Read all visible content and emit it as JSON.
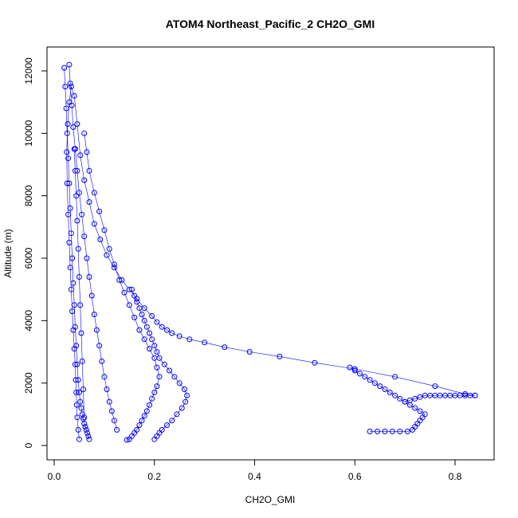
{
  "chart_data": {
    "type": "scatter",
    "title": "ATOM4 Northeast_Pacific_2 CH2O_GMI",
    "xlabel": "CH2O_GMI",
    "ylabel": "Altitude (m)",
    "xlim": [
      0.0,
      0.85
    ],
    "ylim": [
      0,
      12300
    ],
    "x_ticks": [
      "0.0",
      "0.2",
      "0.4",
      "0.6",
      "0.8"
    ],
    "x_tick_values": [
      0.0,
      0.2,
      0.4,
      0.6,
      0.8
    ],
    "y_ticks": [
      "0",
      "2000",
      "4000",
      "6000",
      "8000",
      "10000",
      "12000"
    ],
    "y_tick_values": [
      0,
      2000,
      4000,
      6000,
      8000,
      10000,
      12000
    ],
    "marker": "open-circle",
    "color": "#0000ff",
    "grid": false,
    "series": [
      {
        "x": [
          0.05,
          0.048,
          0.046,
          0.045,
          0.044,
          0.043,
          0.042,
          0.04,
          0.038,
          0.036,
          0.034,
          0.032,
          0.03,
          0.028,
          0.026,
          0.025,
          0.027,
          0.03,
          0.034,
          0.04,
          0.046,
          0.052,
          0.06,
          0.07,
          0.08,
          0.092,
          0.105,
          0.12,
          0.135,
          0.15,
          0.165,
          0.18,
          0.195,
          0.205,
          0.215,
          0.225,
          0.235,
          0.25,
          0.27,
          0.3,
          0.34,
          0.39,
          0.45,
          0.52,
          0.6,
          0.68,
          0.76,
          0.82,
          0.84
        ],
        "y": [
          200,
          500,
          900,
          1300,
          1700,
          2100,
          2600,
          3100,
          3700,
          4300,
          5000,
          5700,
          6500,
          7400,
          8400,
          9400,
          10300,
          11000,
          11500,
          11200,
          10300,
          9300,
          8500,
          7800,
          7100,
          6600,
          6100,
          5700,
          5300,
          5000,
          4700,
          4400,
          4150,
          3950,
          3800,
          3700,
          3600,
          3500,
          3400,
          3300,
          3150,
          3000,
          2850,
          2650,
          2450,
          2200,
          1900,
          1650,
          1600
        ]
      },
      {
        "x": [
          0.02,
          0.022,
          0.024,
          0.026,
          0.028,
          0.03,
          0.032,
          0.034,
          0.036,
          0.038,
          0.04,
          0.042,
          0.044,
          0.046,
          0.048,
          0.05,
          0.052,
          0.054,
          0.056,
          0.058,
          0.06,
          0.062,
          0.064,
          0.066,
          0.068,
          0.07
        ],
        "y": [
          12100,
          11500,
          10800,
          10000,
          9200,
          8400,
          7600,
          6800,
          6000,
          5200,
          4500,
          3800,
          3200,
          2600,
          2100,
          1700,
          1400,
          1200,
          1000,
          850,
          700,
          600,
          500,
          400,
          300,
          200
        ]
      },
      {
        "x": [
          0.03,
          0.032,
          0.035,
          0.038,
          0.042,
          0.046,
          0.05,
          0.055,
          0.06,
          0.065,
          0.07,
          0.075,
          0.08,
          0.085,
          0.09,
          0.095,
          0.1,
          0.105,
          0.11,
          0.115,
          0.12,
          0.125
        ],
        "y": [
          12200,
          11600,
          10900,
          10200,
          9500,
          8800,
          8100,
          7400,
          6700,
          6000,
          5400,
          4800,
          4200,
          3700,
          3200,
          2700,
          2200,
          1800,
          1400,
          1100,
          800,
          500
        ]
      },
      {
        "x": [
          0.06,
          0.065,
          0.07,
          0.08,
          0.09,
          0.1,
          0.11,
          0.12,
          0.13,
          0.14,
          0.15,
          0.16,
          0.17,
          0.18,
          0.19,
          0.2,
          0.205,
          0.21,
          0.205,
          0.2,
          0.195,
          0.19,
          0.185,
          0.18,
          0.175,
          0.17,
          0.165,
          0.16,
          0.155,
          0.15,
          0.145
        ],
        "y": [
          10000,
          9400,
          8800,
          8100,
          7500,
          6900,
          6300,
          5800,
          5300,
          4900,
          4500,
          4100,
          3700,
          3400,
          3100,
          2800,
          2500,
          2200,
          1900,
          1700,
          1500,
          1300,
          1100,
          950,
          800,
          650,
          500,
          400,
          300,
          200,
          180
        ]
      },
      {
        "x": [
          0.155,
          0.16,
          0.165,
          0.17,
          0.175,
          0.18,
          0.185,
          0.19,
          0.195,
          0.2,
          0.205,
          0.21,
          0.22,
          0.23,
          0.24,
          0.25,
          0.26,
          0.265,
          0.262,
          0.255,
          0.245,
          0.235,
          0.225,
          0.215,
          0.21,
          0.205,
          0.2
        ],
        "y": [
          5000,
          4800,
          4600,
          4400,
          4200,
          4000,
          3800,
          3600,
          3400,
          3200,
          3000,
          2800,
          2600,
          2400,
          2200,
          2000,
          1800,
          1600,
          1400,
          1200,
          1000,
          800,
          650,
          500,
          400,
          300,
          200
        ]
      },
      {
        "x": [
          0.63,
          0.645,
          0.66,
          0.675,
          0.69,
          0.705,
          0.715,
          0.72,
          0.725,
          0.73,
          0.735,
          0.74,
          0.73,
          0.72,
          0.71,
          0.7,
          0.69,
          0.68,
          0.67,
          0.66,
          0.65,
          0.64,
          0.63,
          0.62,
          0.61,
          0.6,
          0.59
        ],
        "y": [
          450,
          450,
          450,
          450,
          450,
          450,
          500,
          600,
          700,
          800,
          900,
          1000,
          1100,
          1200,
          1300,
          1400,
          1500,
          1600,
          1700,
          1800,
          1900,
          2000,
          2100,
          2200,
          2300,
          2400,
          2500
        ]
      },
      {
        "x": [
          0.7,
          0.71,
          0.72,
          0.73,
          0.74,
          0.75,
          0.76,
          0.77,
          0.78,
          0.79,
          0.8,
          0.81,
          0.82,
          0.83,
          0.84
        ],
        "y": [
          1400,
          1450,
          1500,
          1550,
          1600,
          1600,
          1600,
          1600,
          1600,
          1600,
          1600,
          1600,
          1600,
          1600,
          1600
        ]
      },
      {
        "x": [
          0.04,
          0.042,
          0.044,
          0.046,
          0.048,
          0.05,
          0.052,
          0.054,
          0.056,
          0.058,
          0.06
        ],
        "y": [
          9500,
          8800,
          8000,
          7200,
          6300,
          5400,
          4500,
          3600,
          2700,
          1800,
          900
        ]
      }
    ]
  }
}
